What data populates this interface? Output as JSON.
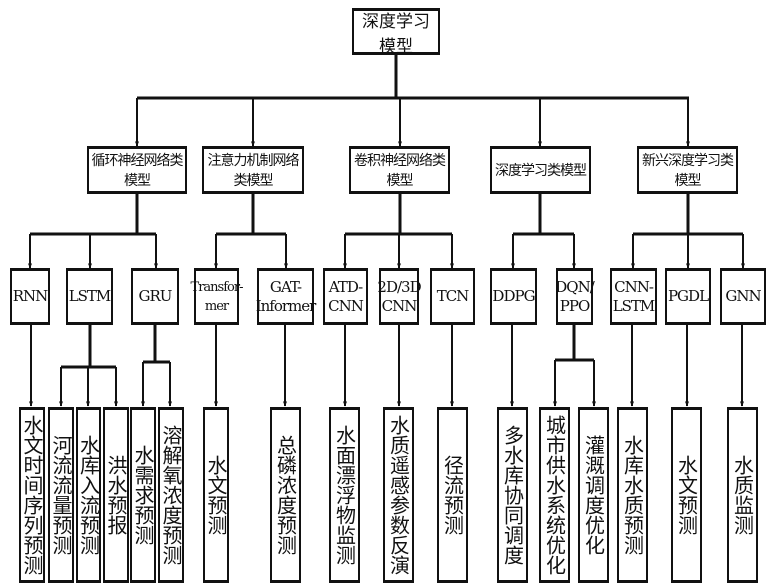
{
  "root": "深度学习模型",
  "categories": [
    "循环神经网络类模型",
    "注意力机制网络类模型",
    "卷积神经网络类模型",
    "深度学习类模型",
    "新兴深度学习类模型"
  ],
  "models": [
    "RNN",
    "LSTM",
    "GRU",
    "Transfor-\nmer",
    "GAT-\nInformer",
    "ATD-\nCNN",
    "2D/3D\nCNN",
    "TCN",
    "DDPG",
    "DQN/\nPPO",
    "CNN-\nLSTM",
    "PGDL",
    "GNN"
  ],
  "applications": [
    "水文时间序列预测",
    "河流流量预测",
    "水库入流预测",
    "洪水预报",
    "水需求预测",
    "溶解氧浓度预测",
    "水文预测",
    "总磷浓度预测",
    "水面漂浮物监测",
    "水质遥感参数反演",
    "径流预测",
    "多水库协同调度",
    "城市供水系统优化",
    "灌溉调度优化",
    "水库水质预测",
    "水文预测",
    "水质监测"
  ]
}
